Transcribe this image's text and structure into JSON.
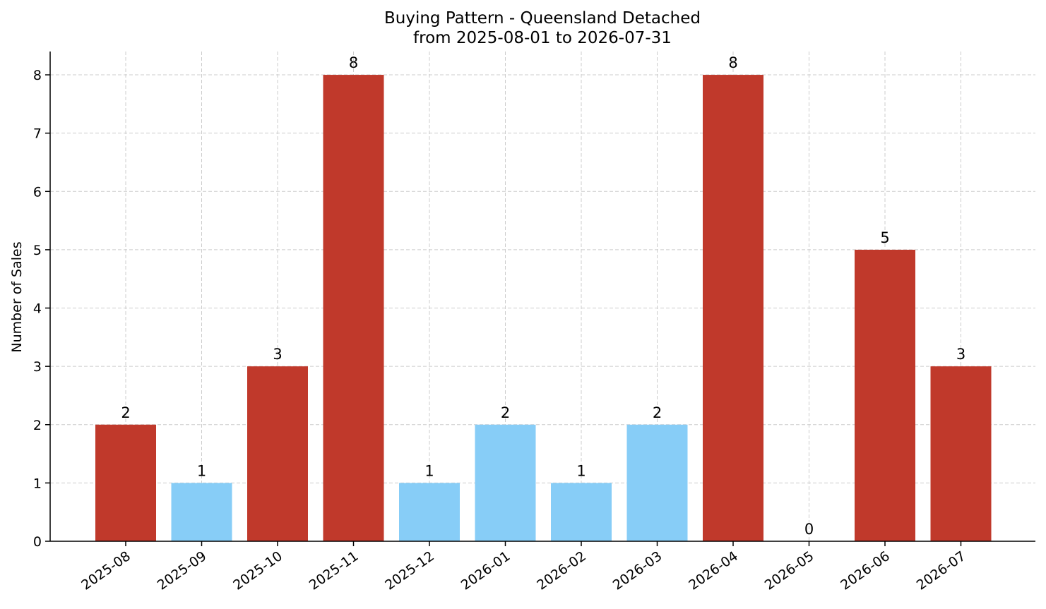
{
  "chart_data": {
    "type": "bar",
    "title": "Buying Pattern - Queensland Detached",
    "subtitle": "from 2025-08-01 to 2026-07-31",
    "xlabel": "",
    "ylabel": "Number of Sales",
    "ylim": [
      0,
      8.4
    ],
    "yticks": [
      0,
      1,
      2,
      3,
      4,
      5,
      6,
      7,
      8
    ],
    "grid": true,
    "categories": [
      "2025-08",
      "2025-09",
      "2025-10",
      "2025-11",
      "2025-12",
      "2026-01",
      "2026-02",
      "2026-03",
      "2026-04",
      "2026-05",
      "2026-06",
      "2026-07"
    ],
    "values": [
      2,
      1,
      3,
      8,
      1,
      2,
      1,
      2,
      8,
      0,
      5,
      3
    ],
    "bar_colors": [
      "#c0392b",
      "#87cdf7",
      "#c0392b",
      "#c0392b",
      "#87cdf7",
      "#87cdf7",
      "#87cdf7",
      "#87cdf7",
      "#c0392b",
      "#87cdf7",
      "#c0392b",
      "#c0392b"
    ]
  }
}
